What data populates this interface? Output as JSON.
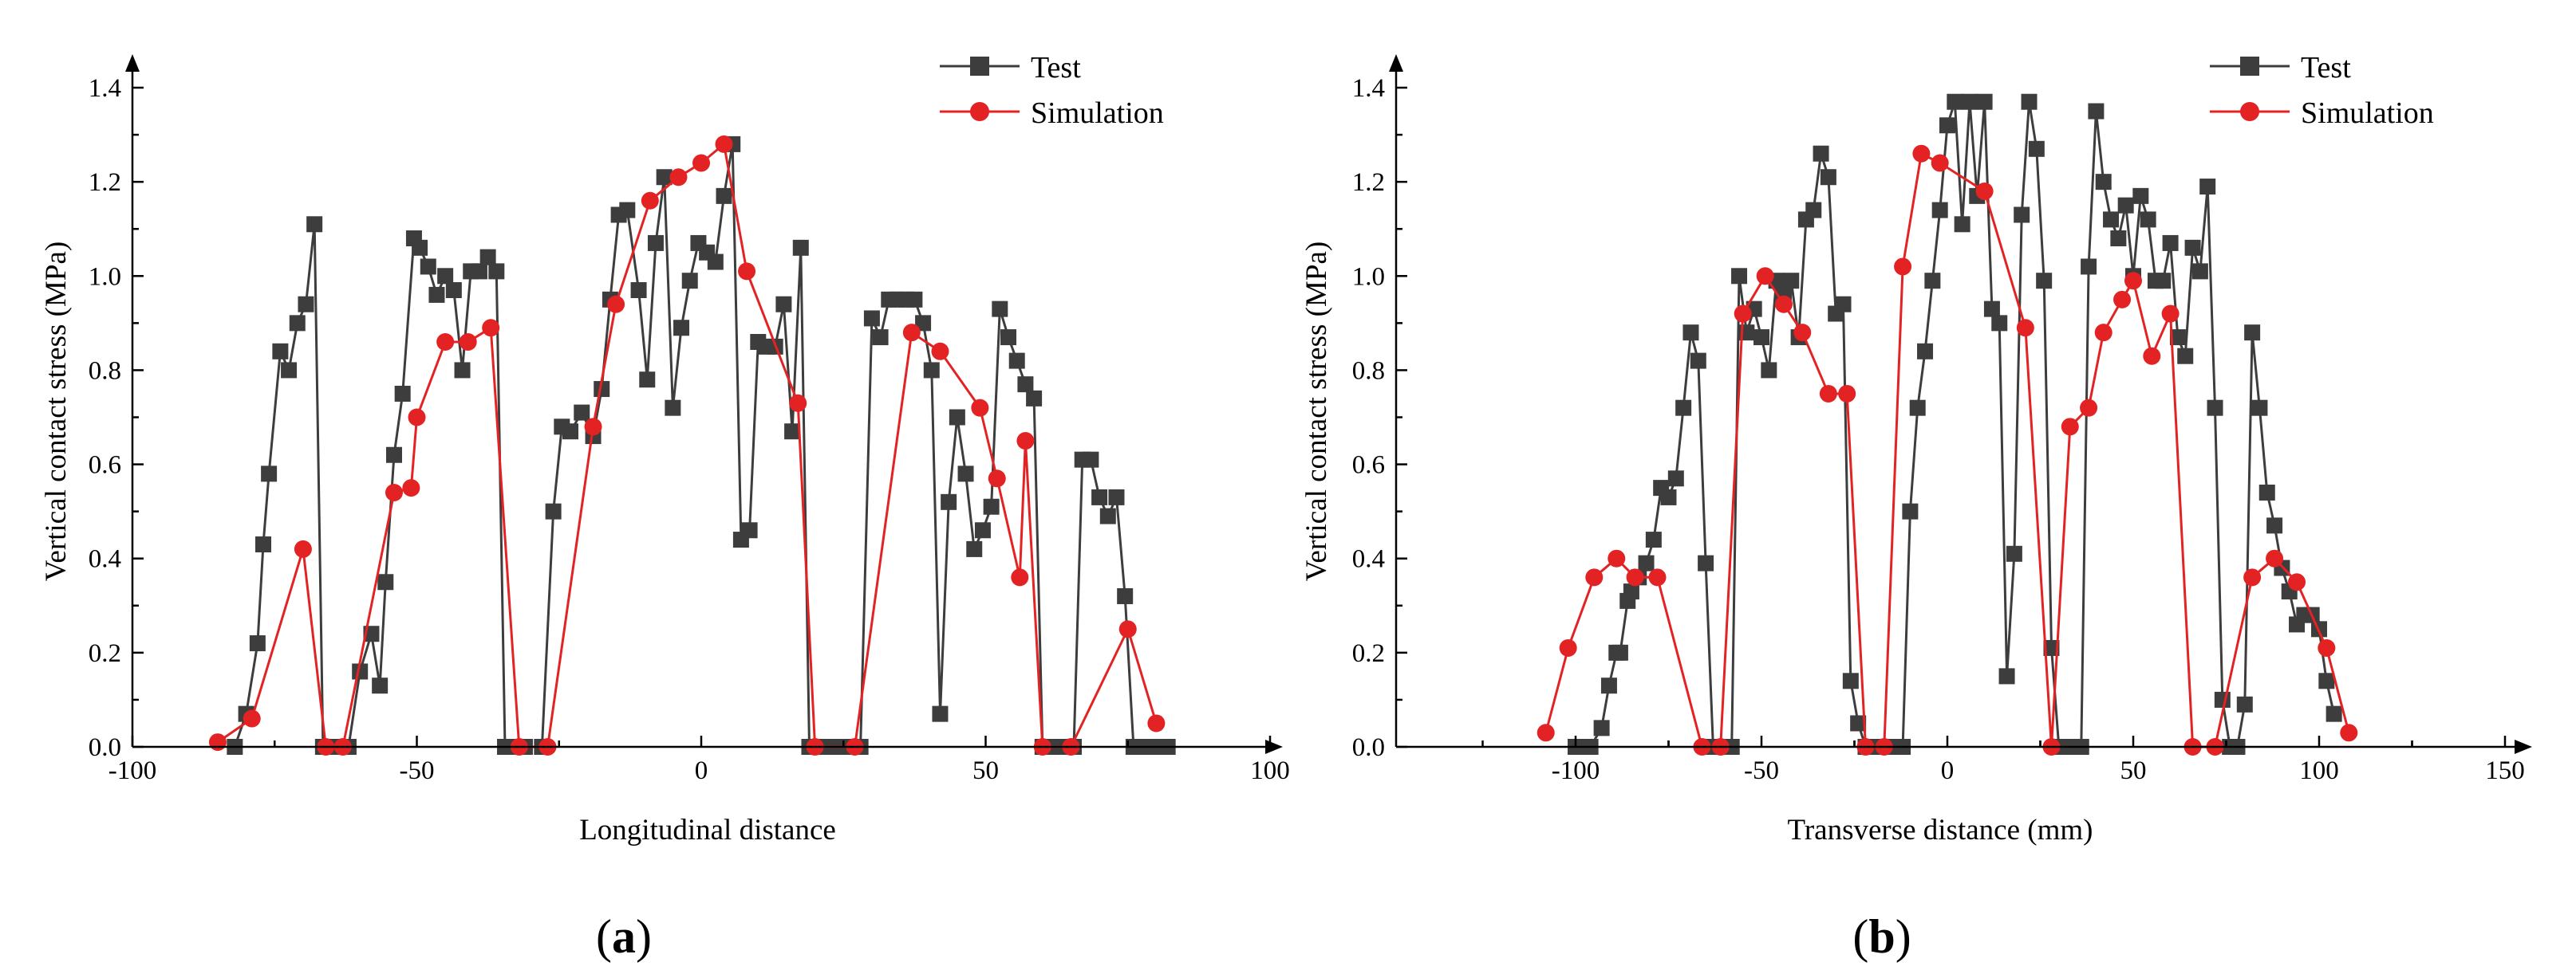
{
  "chart_data": [
    {
      "panel": "a",
      "panel_label": "a",
      "type": "line",
      "title": "",
      "xlabel": "Longitudinal distance",
      "ylabel": "Vertical contact stress (MPa)",
      "xlim": [
        -100,
        100
      ],
      "ylim": [
        0,
        1.45
      ],
      "xticks": [
        -100,
        -50,
        0,
        50,
        100
      ],
      "xtick_labels": [
        "-100",
        "-50",
        "0",
        "50",
        "100"
      ],
      "yticks": [
        0,
        0.2,
        0.4,
        0.6,
        0.8,
        1.0,
        1.2,
        1.4
      ],
      "ytick_labels": [
        "0.0",
        "0.2",
        "0.4",
        "0.6",
        "0.8",
        "1.0",
        "1.2",
        "1.4"
      ],
      "legend_position": "top-right",
      "series": [
        {
          "name": "Test",
          "color": "#3d3d3d",
          "marker": "square",
          "x": [
            -82,
            -80,
            -78,
            -77,
            -76,
            -74,
            -72.5,
            -71,
            -69.5,
            -68,
            -66.5,
            -65,
            -62,
            -60,
            -58,
            -56.5,
            -55.5,
            -54,
            -52.5,
            -50.5,
            -49.5,
            -48,
            -46.5,
            -45,
            -43.5,
            -42,
            -40.5,
            -39,
            -37.5,
            -36,
            -34.5,
            -33,
            -31,
            -28,
            -26,
            -24.5,
            -23,
            -21,
            -19,
            -17.5,
            -16,
            -14.5,
            -13,
            -11,
            -9.5,
            -8,
            -6.5,
            -5,
            -3.5,
            -2,
            -0.5,
            1,
            2.5,
            4,
            5.5,
            7,
            8.5,
            10,
            11.5,
            13,
            14.5,
            16,
            17.5,
            19,
            20.5,
            22,
            24,
            26,
            28,
            30,
            31.5,
            33,
            34.5,
            36,
            37.5,
            39,
            40.5,
            42,
            43.5,
            45,
            46.5,
            48,
            49.5,
            51,
            52.5,
            54,
            55.5,
            57,
            58.5,
            60,
            62,
            64,
            65.5,
            67,
            68.5,
            70,
            71.5,
            73,
            74.5,
            76,
            77.5,
            79,
            80.5,
            82
          ],
          "y": [
            0,
            0.07,
            0.22,
            0.43,
            0.58,
            0.84,
            0.8,
            0.9,
            0.94,
            1.11,
            0,
            0,
            0,
            0.16,
            0.24,
            0.13,
            0.35,
            0.62,
            0.75,
            1.08,
            1.06,
            1.02,
            0.96,
            1.0,
            0.97,
            0.8,
            1.01,
            1.01,
            1.04,
            1.01,
            0,
            0,
            0,
            0,
            0.5,
            0.68,
            0.67,
            0.71,
            0.66,
            0.76,
            0.95,
            1.13,
            1.14,
            0.97,
            0.78,
            1.07,
            1.21,
            0.72,
            0.89,
            0.99,
            1.07,
            1.05,
            1.03,
            1.17,
            1.28,
            0.44,
            0.46,
            0.86,
            0.85,
            0.85,
            0.94,
            0.67,
            1.06,
            0,
            0,
            0,
            0,
            0,
            0,
            0.91,
            0.87,
            0.95,
            0.95,
            0.95,
            0.95,
            0.9,
            0.8,
            0.07,
            0.52,
            0.7,
            0.58,
            0.42,
            0.46,
            0.51,
            0.93,
            0.87,
            0.82,
            0.77,
            0.74,
            0,
            0,
            0,
            0,
            0.61,
            0.61,
            0.53,
            0.49,
            0.53,
            0.32,
            0,
            0,
            0,
            0,
            0
          ]
        },
        {
          "name": "Simulation",
          "color": "#e32323",
          "marker": "circle",
          "x": [
            -85,
            -79,
            -70,
            -66,
            -63,
            -54,
            -51,
            -50,
            -45,
            -41,
            -37,
            -32,
            -27,
            -19,
            -15,
            -9,
            -4,
            0,
            4,
            8,
            17,
            20,
            27,
            37,
            42,
            49,
            52,
            56,
            57,
            60,
            65,
            75,
            80
          ],
          "y": [
            0.01,
            0.06,
            0.42,
            0,
            0,
            0.54,
            0.55,
            0.7,
            0.86,
            0.86,
            0.89,
            0,
            0,
            0.68,
            0.94,
            1.16,
            1.21,
            1.24,
            1.28,
            1.01,
            0.73,
            0,
            0,
            0.88,
            0.84,
            0.72,
            0.57,
            0.36,
            0.65,
            0,
            0,
            0.25,
            0.05
          ]
        }
      ]
    },
    {
      "panel": "b",
      "panel_label": "b",
      "type": "line",
      "title": "",
      "xlabel": "Transverse distance (mm)",
      "ylabel": "Vertical contact stress (MPa)",
      "xlim": [
        -150,
        160
      ],
      "ylim": [
        0,
        1.45
      ],
      "xticks": [
        -100,
        -50,
        0,
        50,
        100,
        150
      ],
      "xtick_labels": [
        "-100",
        "-50",
        "0",
        "50",
        "100",
        "150"
      ],
      "yticks": [
        0,
        0.2,
        0.4,
        0.6,
        0.8,
        1.0,
        1.2,
        1.4
      ],
      "ytick_labels": [
        "0.0",
        "0.2",
        "0.4",
        "0.6",
        "0.8",
        "1.0",
        "1.2",
        "1.4"
      ],
      "legend_position": "top-right",
      "series": [
        {
          "name": "Test",
          "color": "#3d3d3d",
          "marker": "square",
          "x": [
            -100,
            -96,
            -93,
            -91,
            -89,
            -88,
            -86,
            -85,
            -83,
            -81,
            -79,
            -77,
            -75,
            -73,
            -71,
            -69,
            -67,
            -65,
            -63,
            -61,
            -58,
            -56,
            -54,
            -52,
            -50,
            -48,
            -46,
            -44,
            -42,
            -40,
            -38,
            -36,
            -34,
            -32,
            -30,
            -28,
            -26,
            -24,
            -22,
            -20,
            -18,
            -16,
            -14,
            -12,
            -10,
            -8,
            -6,
            -4,
            -2,
            0,
            2,
            4,
            6,
            8,
            10,
            12,
            14,
            16,
            18,
            20,
            22,
            24,
            26,
            28,
            30,
            32,
            34,
            36,
            38,
            40,
            42,
            44,
            46,
            48,
            50,
            52,
            54,
            56,
            58,
            60,
            62,
            64,
            66,
            68,
            70,
            72,
            74,
            76,
            78,
            80,
            82,
            84,
            86,
            88,
            90,
            92,
            94,
            96,
            98,
            100,
            102,
            104
          ],
          "y": [
            0,
            0,
            0.04,
            0.13,
            0.2,
            0.2,
            0.31,
            0.33,
            0.36,
            0.39,
            0.44,
            0.55,
            0.53,
            0.57,
            0.72,
            0.88,
            0.82,
            0.39,
            0,
            0,
            0,
            1.0,
            0.88,
            0.93,
            0.87,
            0.8,
            0.99,
            0.96,
            0.99,
            0.87,
            1.12,
            1.14,
            1.26,
            1.21,
            0.92,
            0.94,
            0.14,
            0.05,
            0,
            0,
            0,
            0,
            0,
            0,
            0.5,
            0.72,
            0.84,
            0.99,
            1.14,
            1.32,
            1.37,
            1.11,
            1.37,
            1.17,
            1.37,
            0.93,
            0.9,
            0.15,
            0.41,
            1.13,
            1.37,
            1.27,
            0.99,
            0.21,
            0,
            0,
            0,
            0,
            1.02,
            1.35,
            1.2,
            1.12,
            1.08,
            1.15,
            1.0,
            1.17,
            1.12,
            0.99,
            0.99,
            1.07,
            0.87,
            0.83,
            1.06,
            1.01,
            1.19,
            0.72,
            0.1,
            0,
            0,
            0.09,
            0.88,
            0.72,
            0.54,
            0.47,
            0.38,
            0.33,
            0.26,
            0.28,
            0.28,
            0.25,
            0.14,
            0.07
          ]
        },
        {
          "name": "Simulation",
          "color": "#e32323",
          "marker": "circle",
          "x": [
            -108,
            -102,
            -95,
            -89,
            -84,
            -78,
            -66,
            -61,
            -55,
            -49,
            -44,
            -39,
            -32,
            -27,
            -22,
            -17,
            -12,
            -7,
            -2,
            10,
            21,
            28,
            33,
            38,
            42,
            47,
            50,
            55,
            60,
            66,
            72,
            82,
            88,
            94,
            102,
            108
          ],
          "y": [
            0.03,
            0.21,
            0.36,
            0.4,
            0.36,
            0.36,
            0,
            0,
            0.92,
            1.0,
            0.94,
            0.88,
            0.75,
            0.75,
            0,
            0,
            1.02,
            1.26,
            1.24,
            1.18,
            0.89,
            0,
            0.68,
            0.72,
            0.88,
            0.95,
            0.99,
            0.83,
            0.92,
            0,
            0,
            0.36,
            0.4,
            0.35,
            0.21,
            0.03
          ]
        }
      ]
    }
  ]
}
